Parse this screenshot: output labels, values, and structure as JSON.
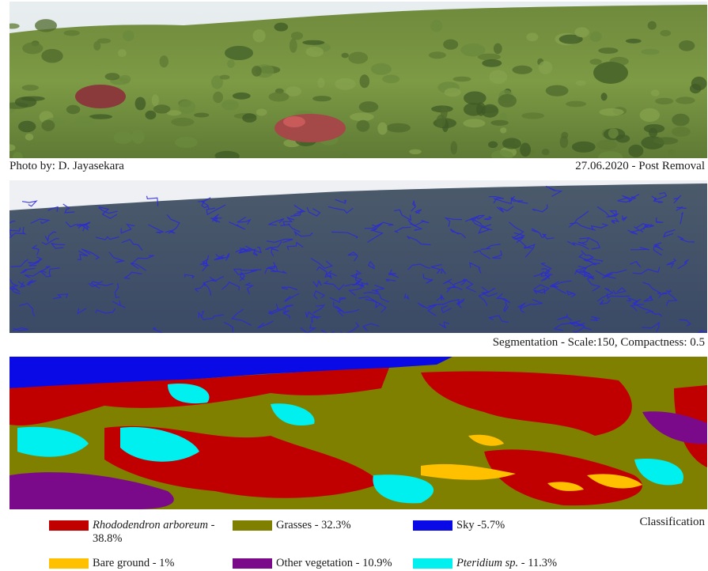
{
  "photo_panel": {
    "credit": "Photo by: D. Jayasekara",
    "date_caption": "27.06.2020 - Post Removal"
  },
  "segmentation_panel": {
    "caption": "Segmentation - Scale:150, Compactness: 0.5",
    "outline_color": "#2a2ad8"
  },
  "classification_panel": {
    "caption": "Classification"
  },
  "legend": {
    "items": [
      {
        "species": "Rhododendron arboreum",
        "value": " - 38.8%",
        "color": "#c00000",
        "italic": true
      },
      {
        "species": "",
        "value": "Grasses - 32.3%",
        "color": "#808000",
        "italic": false
      },
      {
        "species": "",
        "value": "Sky -5.7%",
        "color": "#0a0ae6",
        "italic": false
      },
      {
        "species": "",
        "value": "Bare ground - 1%",
        "color": "#ffc000",
        "italic": false
      },
      {
        "species": "",
        "value": "Other vegetation - 10.9%",
        "color": "#7a0a8a",
        "italic": false
      },
      {
        "species": "Pteridium sp.",
        "value": " - 11.3%",
        "color": "#00f0f0",
        "italic": true
      }
    ]
  }
}
